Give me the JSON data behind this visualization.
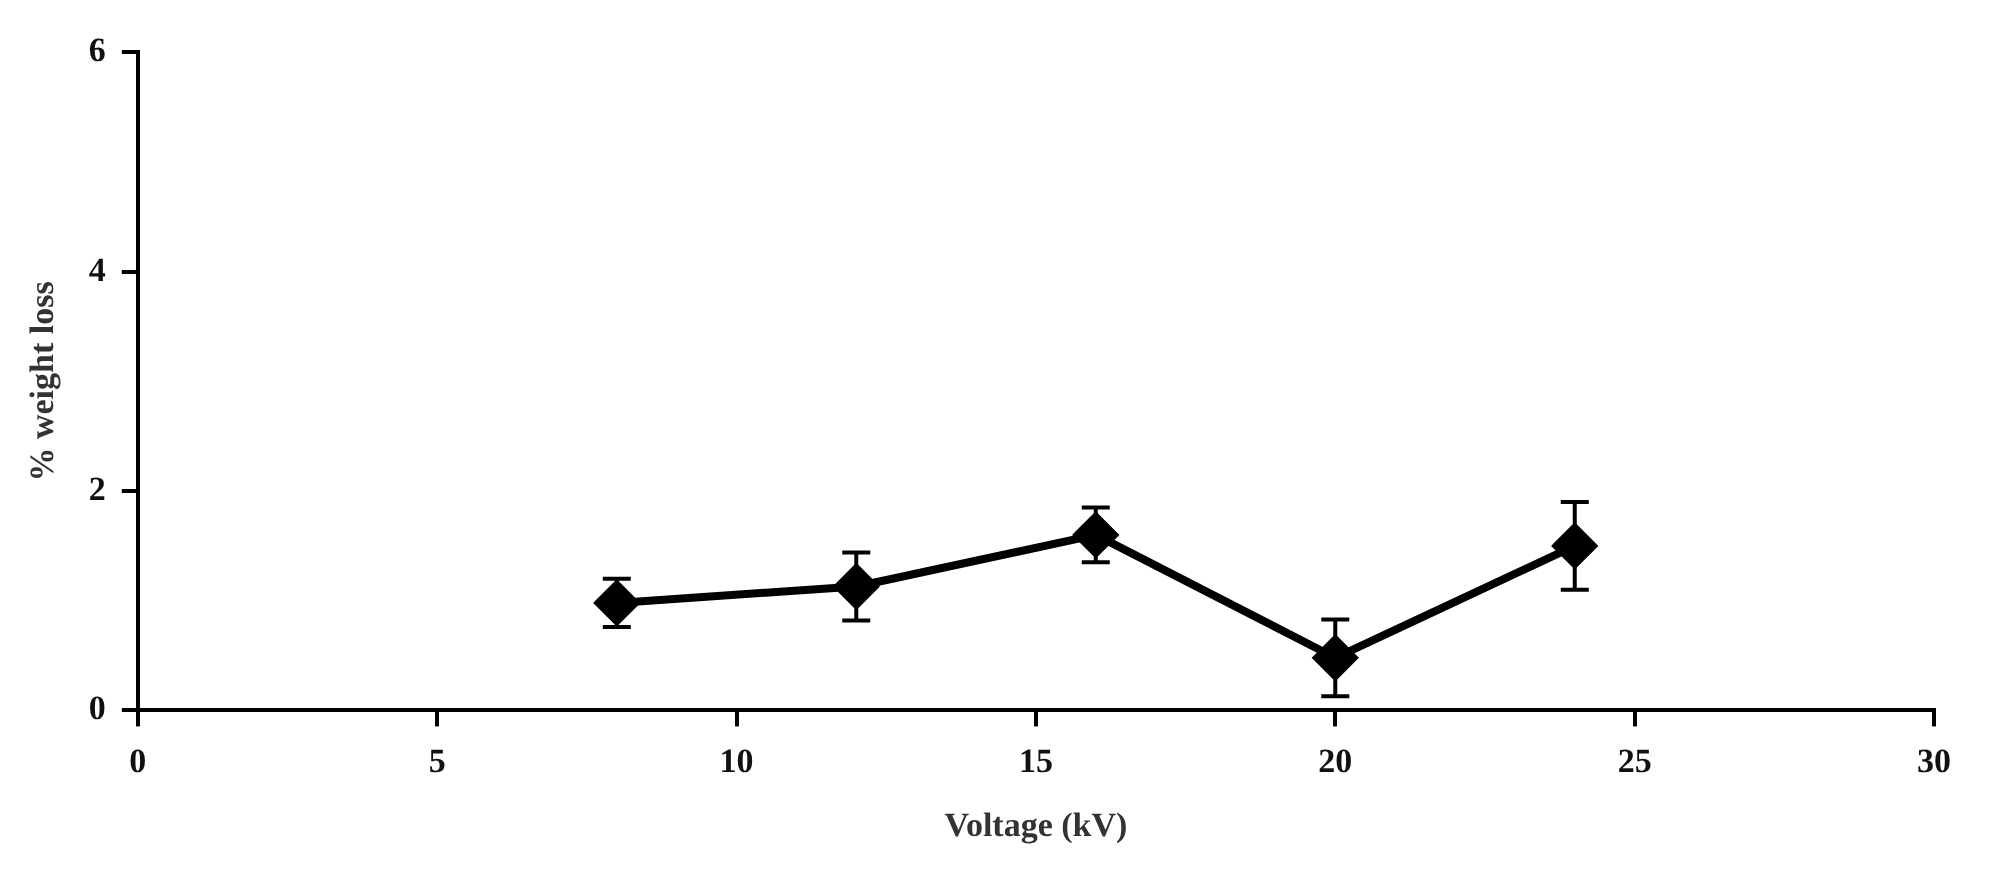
{
  "chart_data": {
    "type": "line",
    "xlabel": "Voltage (kV)",
    "ylabel": "% weight loss",
    "x": [
      8,
      12,
      16,
      20,
      24
    ],
    "series": [
      {
        "color": "#000000",
        "values": [
          0.98,
          1.13,
          1.6,
          0.48,
          1.5
        ],
        "errors": [
          0.22,
          0.31,
          0.25,
          0.35,
          0.4
        ]
      }
    ],
    "xlim": [
      0,
      30
    ],
    "xticks": [
      0,
      5,
      10,
      15,
      20,
      25,
      30
    ],
    "ylim": [
      0,
      6
    ],
    "yticks": [
      0,
      2,
      4,
      6
    ],
    "grid": false,
    "legend": false,
    "marker": "diamond",
    "line_style": "solid"
  }
}
